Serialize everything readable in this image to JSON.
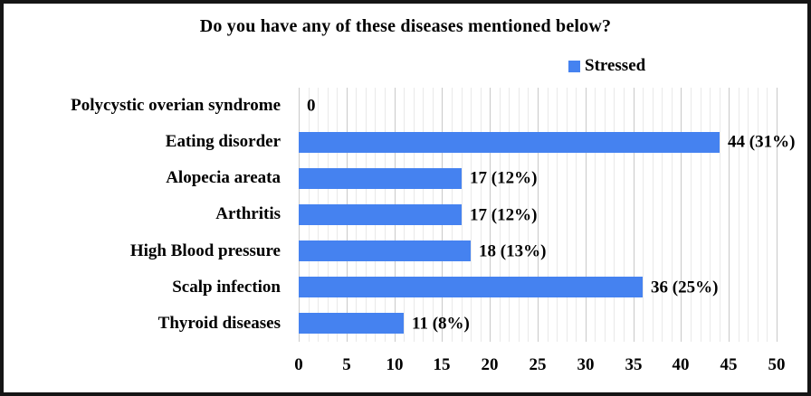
{
  "chart_data": {
    "type": "bar",
    "orientation": "horizontal",
    "title": "Do you have any of these diseases mentioned below?",
    "categories": [
      "Polycystic overian syndrome",
      "Eating disorder",
      "Alopecia areata",
      "Arthritis",
      "High Blood pressure",
      "Scalp infection",
      "Thyroid diseases"
    ],
    "series": [
      {
        "name": "Stressed",
        "values": [
          0,
          44,
          17,
          17,
          18,
          36,
          11
        ],
        "data_labels": [
          "0",
          "44 (31%)",
          "17 (12%)",
          "17 (12%)",
          "18 (13%)",
          "36 (25%)",
          "11 (8%)"
        ]
      }
    ],
    "xlim": [
      0,
      50
    ],
    "x_ticks": [
      0,
      5,
      10,
      15,
      20,
      25,
      30,
      35,
      40,
      45,
      50
    ],
    "minor_grid_step": 1,
    "major_grid_step": 5,
    "grid": true,
    "legend_position": "top-right"
  },
  "colors": {
    "bar": "#4582F0",
    "grid_minor": "#e9e9e9",
    "grid_major": "#c9c9c9",
    "border": "#151515",
    "text": "#000000"
  }
}
